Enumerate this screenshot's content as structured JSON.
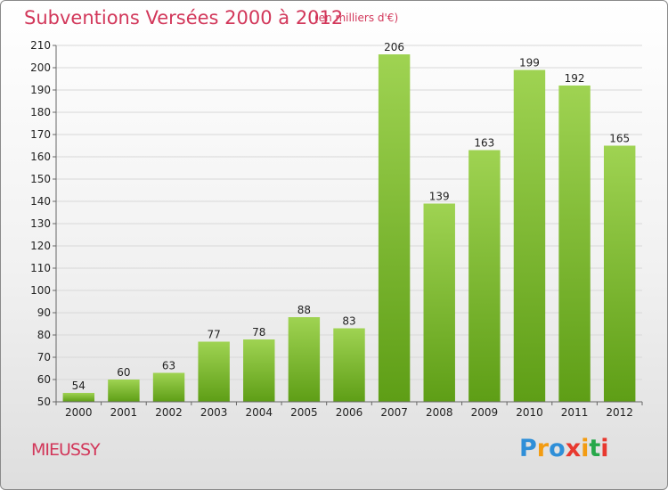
{
  "title": "Subventions Versées 2000 à 2012",
  "unit_note": "(en milliers d'€)",
  "commune": "MIEUSSY",
  "logo": {
    "letters": [
      "P",
      "r",
      "o",
      "x",
      "i",
      "t",
      "i"
    ],
    "colors": [
      "#2f8fd8",
      "#f39c12",
      "#2f8fd8",
      "#e8392f",
      "#f39c12",
      "#27a84a",
      "#e8392f"
    ]
  },
  "colors": {
    "bar_top": "#9fd352",
    "bar_bottom": "#5e9e16",
    "grid": "#d8d8d8",
    "title": "#d2375a"
  },
  "chart_data": {
    "type": "bar",
    "title": "Subventions Versées 2000 à 2012",
    "subtitle": "(en milliers d'€)",
    "categories": [
      "2000",
      "2001",
      "2002",
      "2003",
      "2004",
      "2005",
      "2006",
      "2007",
      "2008",
      "2009",
      "2010",
      "2011",
      "2012"
    ],
    "values": [
      54,
      60,
      63,
      77,
      78,
      88,
      83,
      206,
      139,
      163,
      199,
      192,
      165
    ],
    "ylim": [
      50,
      210
    ],
    "yticks": [
      50,
      60,
      70,
      80,
      90,
      100,
      110,
      120,
      130,
      140,
      150,
      160,
      170,
      180,
      190,
      200,
      210
    ],
    "grid": true,
    "data_labels": true
  }
}
